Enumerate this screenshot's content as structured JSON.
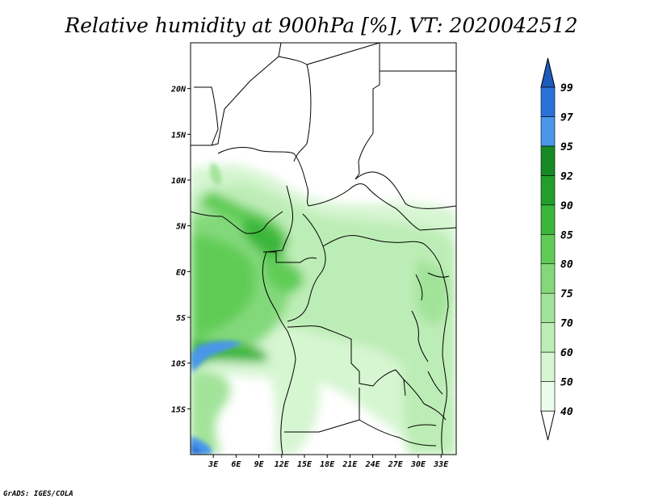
{
  "title": "Relative humidity at 900hPa [%], VT: 2020042512",
  "credit": "GrADS: IGES/COLA",
  "map": {
    "lon_range": [
      0,
      35
    ],
    "lat_range": [
      -20,
      25
    ],
    "lat_ticks": [
      {
        "value": 20,
        "label": "20N"
      },
      {
        "value": 15,
        "label": "15N"
      },
      {
        "value": 10,
        "label": "10N"
      },
      {
        "value": 5,
        "label": "5N"
      },
      {
        "value": 0,
        "label": "EQ"
      },
      {
        "value": -5,
        "label": "5S"
      },
      {
        "value": -10,
        "label": "10S"
      },
      {
        "value": -15,
        "label": "15S"
      }
    ],
    "lon_ticks": [
      {
        "value": 3,
        "label": "3E"
      },
      {
        "value": 6,
        "label": "6E"
      },
      {
        "value": 9,
        "label": "9E"
      },
      {
        "value": 12,
        "label": "12E"
      },
      {
        "value": 15,
        "label": "15E"
      },
      {
        "value": 18,
        "label": "18E"
      },
      {
        "value": 21,
        "label": "21E"
      },
      {
        "value": 24,
        "label": "24E"
      },
      {
        "value": 27,
        "label": "27E"
      },
      {
        "value": 30,
        "label": "30E"
      },
      {
        "value": 33,
        "label": "33E"
      }
    ]
  },
  "colorbar": {
    "levels": [
      "40",
      "50",
      "60",
      "70",
      "75",
      "80",
      "85",
      "90",
      "92",
      "95",
      "97",
      "99"
    ],
    "colors": [
      "#ffffff",
      "#ecfcea",
      "#d6f5d1",
      "#bdedb6",
      "#a2e39a",
      "#83d97a",
      "#60cc56",
      "#3ab63a",
      "#229f2b",
      "#168a24",
      "#4a97ea",
      "#2a72d9",
      "#1c5bbd"
    ]
  }
}
